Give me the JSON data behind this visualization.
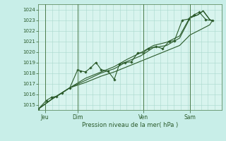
{
  "title": "Pression niveau de la mer( hPa )",
  "background_color": "#c8eee8",
  "plot_bg": "#d8f4ee",
  "grid_color": "#a8d8cc",
  "line_color": "#2a5a2a",
  "vline_color": "#4a7a4a",
  "ylim": [
    1014.5,
    1024.5
  ],
  "yticks": [
    1015,
    1016,
    1017,
    1018,
    1019,
    1020,
    1021,
    1022,
    1023,
    1024
  ],
  "xlim": [
    0.0,
    7.0
  ],
  "day_positions": [
    0.25,
    1.5,
    4.0,
    5.8
  ],
  "day_labels": [
    "Jeu",
    "Dim",
    "Ven",
    "Sam"
  ],
  "vline_positions": [
    0.25,
    1.5,
    4.0,
    5.8
  ],
  "series1_markers": [
    [
      0.0,
      1014.6
    ],
    [
      0.3,
      1015.4
    ],
    [
      0.5,
      1015.7
    ],
    [
      0.7,
      1015.8
    ],
    [
      0.9,
      1016.1
    ],
    [
      1.2,
      1016.6
    ],
    [
      1.5,
      1018.3
    ],
    [
      1.6,
      1018.2
    ],
    [
      1.8,
      1018.1
    ],
    [
      2.0,
      1018.5
    ],
    [
      2.2,
      1019.0
    ],
    [
      2.4,
      1018.3
    ],
    [
      2.65,
      1018.2
    ],
    [
      2.9,
      1017.4
    ],
    [
      3.1,
      1018.85
    ],
    [
      3.3,
      1019.0
    ],
    [
      3.55,
      1019.05
    ],
    [
      3.8,
      1019.9
    ],
    [
      4.0,
      1019.9
    ],
    [
      4.2,
      1020.3
    ],
    [
      4.5,
      1020.5
    ],
    [
      4.75,
      1020.3
    ],
    [
      5.0,
      1021.0
    ],
    [
      5.2,
      1021.05
    ],
    [
      5.5,
      1023.0
    ],
    [
      5.75,
      1023.1
    ],
    [
      5.95,
      1023.5
    ],
    [
      6.15,
      1023.75
    ],
    [
      6.4,
      1023.05
    ],
    [
      6.65,
      1022.95
    ]
  ],
  "series2": [
    [
      0.0,
      1014.6
    ],
    [
      0.5,
      1015.5
    ],
    [
      1.2,
      1016.6
    ],
    [
      1.8,
      1017.1
    ],
    [
      2.4,
      1017.7
    ],
    [
      2.9,
      1018.1
    ],
    [
      3.4,
      1018.6
    ],
    [
      3.9,
      1019.1
    ],
    [
      4.4,
      1019.6
    ],
    [
      4.9,
      1020.1
    ],
    [
      5.4,
      1020.6
    ],
    [
      5.8,
      1021.6
    ],
    [
      6.2,
      1022.1
    ],
    [
      6.55,
      1022.55
    ],
    [
      6.65,
      1022.95
    ]
  ],
  "series3": [
    [
      0.0,
      1014.6
    ],
    [
      0.5,
      1015.5
    ],
    [
      1.2,
      1016.6
    ],
    [
      1.8,
      1017.3
    ],
    [
      2.4,
      1018.0
    ],
    [
      2.9,
      1018.4
    ],
    [
      3.4,
      1019.1
    ],
    [
      3.9,
      1019.6
    ],
    [
      4.4,
      1020.4
    ],
    [
      4.9,
      1020.6
    ],
    [
      5.4,
      1021.3
    ],
    [
      5.8,
      1023.2
    ],
    [
      6.1,
      1023.5
    ],
    [
      6.3,
      1023.85
    ],
    [
      6.55,
      1023.05
    ],
    [
      6.65,
      1022.95
    ]
  ],
  "series4": [
    [
      0.0,
      1014.6
    ],
    [
      0.5,
      1015.5
    ],
    [
      1.2,
      1016.6
    ],
    [
      1.8,
      1017.5
    ],
    [
      2.4,
      1018.1
    ],
    [
      2.9,
      1018.6
    ],
    [
      3.4,
      1019.3
    ],
    [
      3.9,
      1019.9
    ],
    [
      4.4,
      1020.6
    ],
    [
      4.9,
      1020.9
    ],
    [
      5.4,
      1021.5
    ],
    [
      5.8,
      1023.3
    ],
    [
      6.1,
      1023.5
    ],
    [
      6.3,
      1023.9
    ],
    [
      6.55,
      1023.05
    ],
    [
      6.65,
      1022.95
    ]
  ]
}
